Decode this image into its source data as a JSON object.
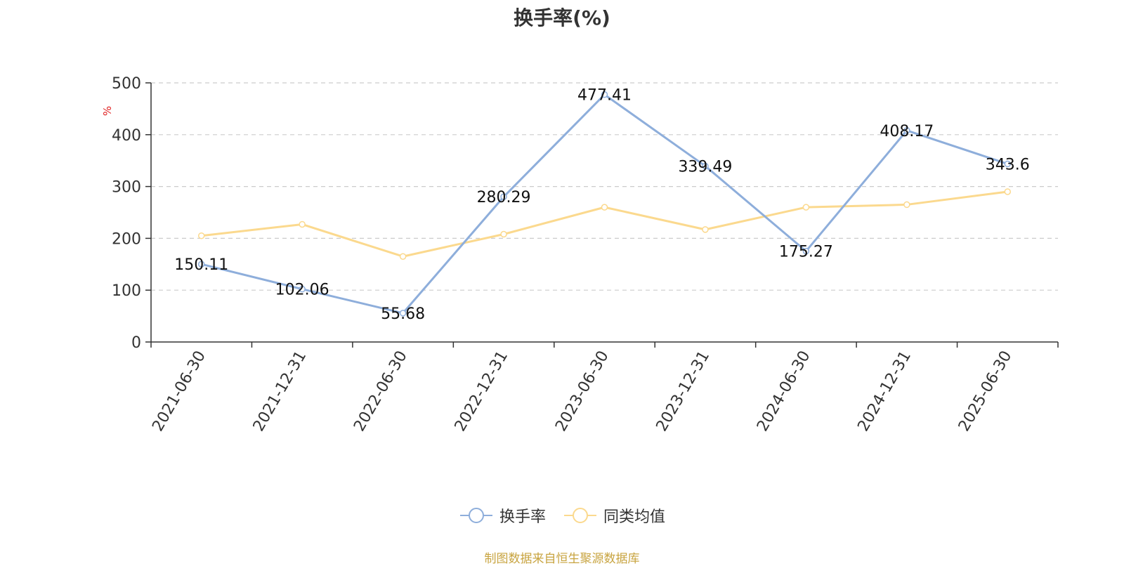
{
  "title": "换手率(%)",
  "source_note": "制图数据来自恒生聚源数据库",
  "colors": {
    "series_main": "#8eaedb",
    "series_avg": "#fbd98e",
    "unit": "#e02020",
    "grid": "#cccccc",
    "axis": "#333333"
  },
  "chart_data": {
    "type": "line",
    "title": "换手率(%)",
    "ylabel": "%",
    "xlabel": "",
    "ylim": [
      0,
      500
    ],
    "yticks": [
      "0",
      "100",
      "200",
      "300",
      "400",
      "500"
    ],
    "grid": true,
    "legend_position": "bottom-center",
    "categories": [
      "2021-06-30",
      "2021-12-31",
      "2022-06-30",
      "2022-12-31",
      "2023-06-30",
      "2023-12-31",
      "2024-06-30",
      "2024-12-31",
      "2025-06-30"
    ],
    "series": [
      {
        "name": "换手率",
        "values": [
          150.11,
          102.06,
          55.68,
          280.29,
          477.41,
          339.49,
          175.27,
          408.17,
          343.6
        ],
        "labels": [
          "150.11",
          "102.06",
          "55.68",
          "280.29",
          "477.41",
          "339.49",
          "175.27",
          "408.17",
          "343.6"
        ]
      },
      {
        "name": "同类均值",
        "values": [
          205,
          227,
          165,
          208,
          260,
          217,
          260,
          265,
          290
        ]
      }
    ]
  }
}
